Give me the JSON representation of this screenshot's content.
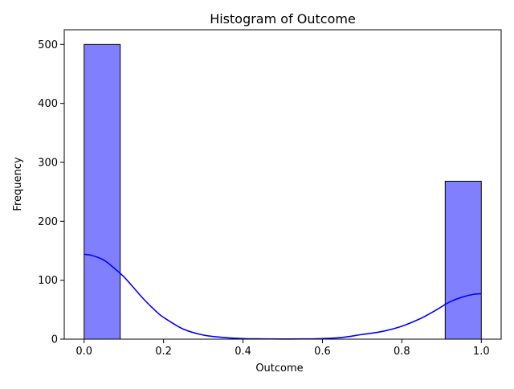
{
  "chart_data": {
    "type": "bar",
    "title": "Histogram of Outcome",
    "xlabel": "Outcome",
    "ylabel": "Frequency",
    "xlim": [
      -0.05,
      1.05
    ],
    "ylim": [
      0,
      525
    ],
    "xticks": [
      0.0,
      0.2,
      0.4,
      0.6,
      0.8,
      1.0
    ],
    "xtick_labels": [
      "0.0",
      "0.2",
      "0.4",
      "0.6",
      "0.8",
      "1.0"
    ],
    "yticks": [
      0,
      100,
      200,
      300,
      400,
      500
    ],
    "ytick_labels": [
      "0",
      "100",
      "200",
      "300",
      "400",
      "500"
    ],
    "bins": [
      {
        "x0": 0.0,
        "x1": 0.0909,
        "count": 500
      },
      {
        "x0": 0.0909,
        "x1": 0.1818,
        "count": 0
      },
      {
        "x0": 0.1818,
        "x1": 0.2727,
        "count": 0
      },
      {
        "x0": 0.2727,
        "x1": 0.3636,
        "count": 0
      },
      {
        "x0": 0.3636,
        "x1": 0.4545,
        "count": 0
      },
      {
        "x0": 0.4545,
        "x1": 0.5455,
        "count": 0
      },
      {
        "x0": 0.5455,
        "x1": 0.6364,
        "count": 0
      },
      {
        "x0": 0.6364,
        "x1": 0.7273,
        "count": 0
      },
      {
        "x0": 0.7273,
        "x1": 0.8182,
        "count": 0
      },
      {
        "x0": 0.8182,
        "x1": 0.9091,
        "count": 0
      },
      {
        "x0": 0.9091,
        "x1": 1.0,
        "count": 268
      }
    ],
    "kde": {
      "x": [
        0.0,
        0.02,
        0.05,
        0.08,
        0.1,
        0.12,
        0.15,
        0.18,
        0.2,
        0.25,
        0.3,
        0.35,
        0.4,
        0.45,
        0.5,
        0.55,
        0.6,
        0.65,
        0.7,
        0.75,
        0.8,
        0.85,
        0.88,
        0.9,
        0.92,
        0.95,
        0.98,
        1.0
      ],
      "y": [
        144,
        142,
        134,
        118,
        106,
        91,
        68,
        48,
        37,
        17,
        7,
        3,
        1,
        0.5,
        0.3,
        0.4,
        1,
        3,
        8,
        13,
        22,
        36,
        47,
        55,
        63,
        71,
        76,
        77
      ]
    },
    "bar_color": "#8080ff",
    "bar_edge_color": "#000000",
    "kde_color": "#0000ff",
    "grid": false
  }
}
